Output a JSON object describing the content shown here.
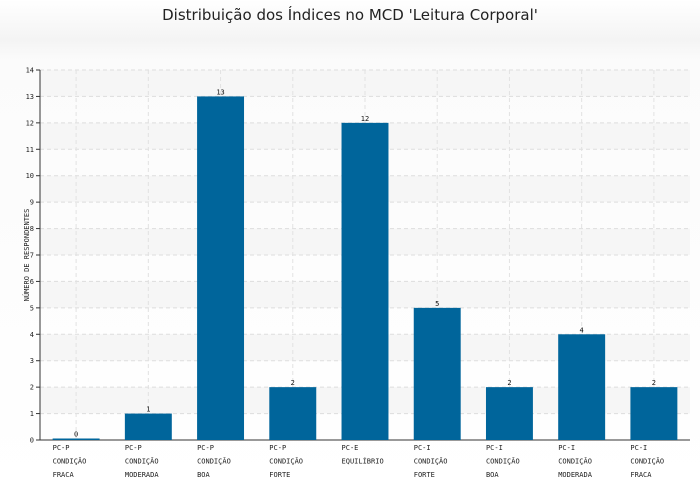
{
  "chart_data": {
    "type": "bar",
    "title": "Distribuição dos Índices no MCD 'Leitura Corporal'",
    "xlabel": "",
    "ylabel": "NÚMERO DE RESPONDENTES",
    "ylim": [
      0,
      14
    ],
    "yticks": [
      0,
      1,
      2,
      3,
      4,
      5,
      6,
      7,
      8,
      9,
      10,
      11,
      12,
      13,
      14
    ],
    "grid": true,
    "bar_color": "#00659b",
    "categories": [
      [
        "PC-P",
        "CONDIÇÃO",
        "FRACA"
      ],
      [
        "PC-P",
        "CONDIÇÃO",
        "MODERADA"
      ],
      [
        "PC-P",
        "CONDIÇÃO",
        "BOA"
      ],
      [
        "PC-P",
        "CONDIÇÃO",
        "FORTE"
      ],
      [
        "PC-E",
        "EQUILÍBRIO"
      ],
      [
        "PC-I",
        "CONDIÇÃO",
        "FORTE"
      ],
      [
        "PC-I",
        "CONDIÇÃO",
        "BOA"
      ],
      [
        "PC-I",
        "CONDIÇÃO",
        "MODERADA"
      ],
      [
        "PC-I",
        "CONDIÇÃO",
        "FRACA"
      ]
    ],
    "values": [
      0,
      1,
      13,
      2,
      12,
      5,
      2,
      4,
      2
    ]
  }
}
